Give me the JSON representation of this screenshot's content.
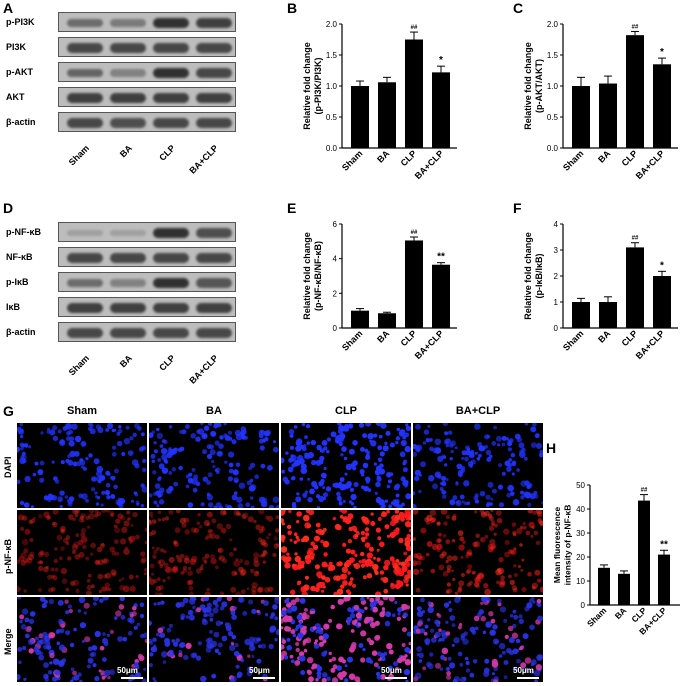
{
  "panels": {
    "A": "A",
    "B": "B",
    "C": "C",
    "D": "D",
    "E": "E",
    "F": "F",
    "G": "G",
    "H": "H"
  },
  "groups": [
    "Sham",
    "BA",
    "CLP",
    "BA+CLP"
  ],
  "blot_A": {
    "rows": [
      {
        "label": "p-PI3K",
        "intensity": [
          0.55,
          0.45,
          0.95,
          0.85
        ]
      },
      {
        "label": "PI3K",
        "intensity": [
          0.8,
          0.8,
          0.8,
          0.8
        ]
      },
      {
        "label": "p-AKT",
        "intensity": [
          0.6,
          0.4,
          0.95,
          0.8
        ]
      },
      {
        "label": "AKT",
        "intensity": [
          0.85,
          0.85,
          0.85,
          0.85
        ]
      },
      {
        "label": "β-actin",
        "intensity": [
          0.8,
          0.75,
          0.8,
          0.8
        ]
      }
    ]
  },
  "blot_D": {
    "rows": [
      {
        "label": "p-NF-κB",
        "intensity": [
          0.2,
          0.2,
          0.95,
          0.75
        ]
      },
      {
        "label": "NF-κB",
        "intensity": [
          0.8,
          0.8,
          0.8,
          0.8
        ]
      },
      {
        "label": "p-IκB",
        "intensity": [
          0.55,
          0.4,
          0.95,
          0.7
        ]
      },
      {
        "label": "IκB",
        "intensity": [
          0.85,
          0.85,
          0.85,
          0.85
        ]
      },
      {
        "label": "β-actin",
        "intensity": [
          0.8,
          0.8,
          0.8,
          0.8
        ]
      }
    ]
  },
  "chart_data": [
    {
      "type": "bar",
      "panel": "B",
      "categories": [
        "Sham",
        "BA",
        "CLP",
        "BA+CLP"
      ],
      "values": [
        1.0,
        1.06,
        1.75,
        1.22
      ],
      "errors": [
        0.08,
        0.08,
        0.12,
        0.1
      ],
      "annotations": [
        "",
        "",
        "##",
        "*"
      ],
      "ylabel": "Relative fold change\n(p-PI3K/PI3K)",
      "ylim": [
        0,
        2.0
      ],
      "yticks": [
        "0.0",
        "0.5",
        "1.0",
        "1.5",
        "2.0"
      ]
    },
    {
      "type": "bar",
      "panel": "C",
      "categories": [
        "Sham",
        "BA",
        "CLP",
        "BA+CLP"
      ],
      "values": [
        1.0,
        1.04,
        1.82,
        1.35
      ],
      "errors": [
        0.14,
        0.12,
        0.06,
        0.1
      ],
      "annotations": [
        "",
        "",
        "##",
        "*"
      ],
      "ylabel": "Relative fold change\n(p-AKT/AKT)",
      "ylim": [
        0,
        2.0
      ],
      "yticks": [
        "0.0",
        "0.5",
        "1.0",
        "1.5",
        "2.0"
      ]
    },
    {
      "type": "bar",
      "panel": "E",
      "categories": [
        "Sham",
        "BA",
        "CLP",
        "BA+CLP"
      ],
      "values": [
        1.0,
        0.85,
        5.05,
        3.65
      ],
      "errors": [
        0.12,
        0.06,
        0.2,
        0.12
      ],
      "annotations": [
        "",
        "",
        "##",
        "**"
      ],
      "ylabel": "Relative fold change\n(p-NF-κB/NF-κB)",
      "ylim": [
        0,
        6
      ],
      "yticks": [
        "0",
        "2",
        "4",
        "6"
      ]
    },
    {
      "type": "bar",
      "panel": "F",
      "categories": [
        "Sham",
        "BA",
        "CLP",
        "BA+CLP"
      ],
      "values": [
        1.0,
        1.0,
        3.1,
        2.0
      ],
      "errors": [
        0.14,
        0.2,
        0.18,
        0.18
      ],
      "annotations": [
        "",
        "",
        "##",
        "*"
      ],
      "ylabel": "Relative fold change\n(p-IκB/IκB)",
      "ylim": [
        0,
        4
      ],
      "yticks": [
        "0",
        "1",
        "2",
        "3",
        "4"
      ]
    },
    {
      "type": "bar",
      "panel": "H",
      "categories": [
        "Sham",
        "BA",
        "CLP",
        "BA+CLP"
      ],
      "values": [
        15.5,
        13.0,
        43.5,
        21.0
      ],
      "errors": [
        1.2,
        1.2,
        2.5,
        1.8
      ],
      "annotations": [
        "",
        "",
        "##",
        "**"
      ],
      "ylabel": "Mean fluorescence\nintensity of p-NF-κB",
      "ylim": [
        0,
        50
      ],
      "yticks": [
        "0",
        "10",
        "20",
        "30",
        "40",
        "50"
      ]
    }
  ],
  "micro": {
    "rows": [
      "DAPI",
      "p-NF-κB",
      "Merge"
    ],
    "columns": [
      "Sham",
      "BA",
      "CLP",
      "BA+CLP"
    ],
    "scalebar": "50μm",
    "colors": {
      "dapi": "#1a2cff",
      "red": "#ff1a1a",
      "black": "#000000"
    }
  }
}
